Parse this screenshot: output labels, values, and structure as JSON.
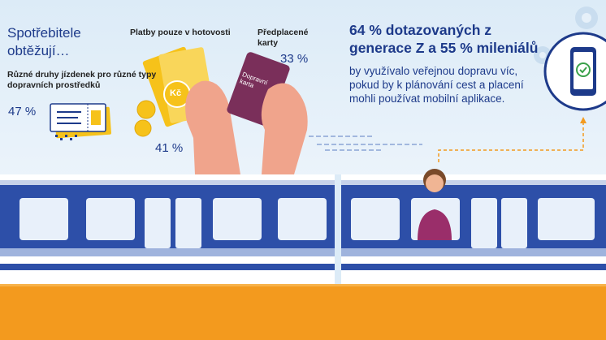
{
  "left": {
    "title": "Spotřebitele obtěžují…",
    "subtitle": "Různé druhy jízdenek pro různé typy dopravních prostředků",
    "tickets_pct": "47 %"
  },
  "cash": {
    "label": "Platby pouze v hotovosti",
    "pct": "41 %",
    "coin_text": "Kč"
  },
  "card": {
    "label": "Předplacené karty",
    "pct": "33 %",
    "card_text_1": "Dopravní",
    "card_text_2": "karta"
  },
  "right": {
    "headline": "64 % dotazovaných z generace Z a 55 % mileniálů",
    "body": "by využívalo veřejnou dopravu víc, pokud by k plánování cest a placení mohli používat mobilní aplikace."
  },
  "colors": {
    "navy": "#1d3a8a",
    "train_blue": "#2d4fa8",
    "orange": "#f39a1e",
    "gold": "#f6c21a",
    "card": "#7a2f5a"
  }
}
